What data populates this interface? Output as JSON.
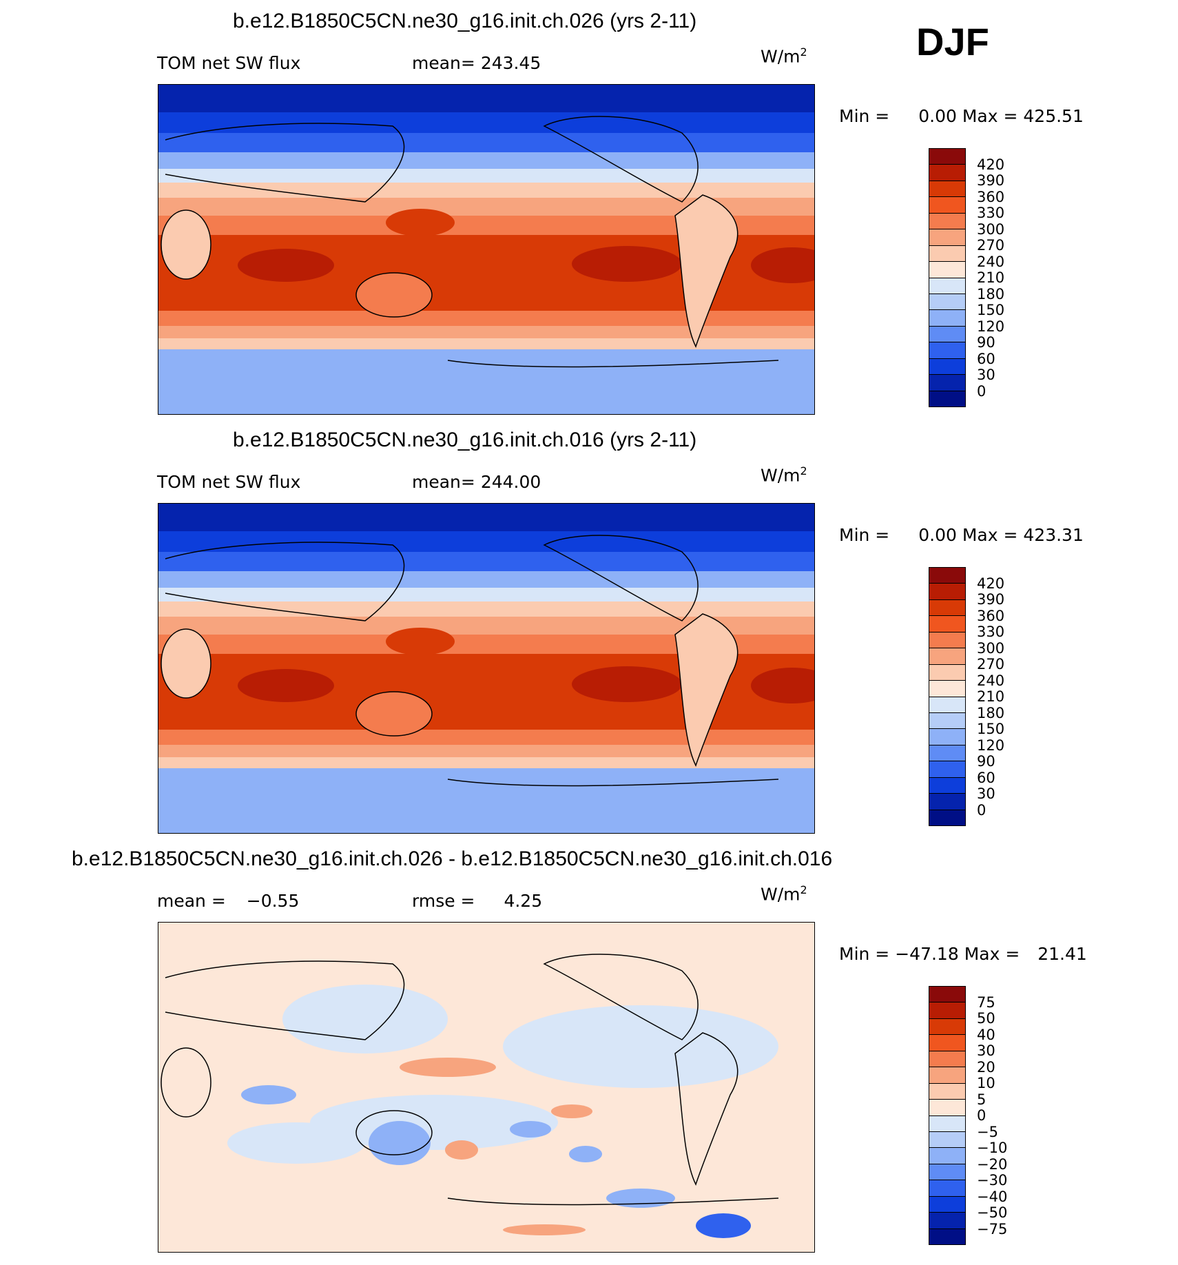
{
  "season": "DJF",
  "chart_data": [
    {
      "type": "heatmap",
      "title": "b.e12.B1850C5CN.ne30_g16.init.ch.026 (yrs 2-11)",
      "left_label": "TOM net SW flux",
      "stat_label": "mean=",
      "stat_value": "243.45",
      "units_base": "W/m",
      "units_exp": "2",
      "min_label": "Min =",
      "min_value": "0.00",
      "max_label": "Max =",
      "max_value": "425.51",
      "colorbar_levels": [
        "420",
        "390",
        "360",
        "330",
        "300",
        "270",
        "240",
        "210",
        "180",
        "150",
        "120",
        "90",
        "60",
        "30",
        "0"
      ],
      "colorbar_colors": [
        "#8a0a0a",
        "#b81d04",
        "#d83a06",
        "#f0561f",
        "#f47c4e",
        "#f7a47e",
        "#fbcbb0",
        "#fde7d8",
        "#d8e6f8",
        "#b5cdf7",
        "#8eb1f7",
        "#5f8cf5",
        "#2f61ee",
        "#0d3edb",
        "#0523ad",
        "#000f86"
      ]
    },
    {
      "type": "heatmap",
      "title": "b.e12.B1850C5CN.ne30_g16.init.ch.016 (yrs 2-11)",
      "left_label": "TOM net SW flux",
      "stat_label": "mean=",
      "stat_value": "244.00",
      "units_base": "W/m",
      "units_exp": "2",
      "min_label": "Min =",
      "min_value": "0.00",
      "max_label": "Max =",
      "max_value": "423.31",
      "colorbar_levels": [
        "420",
        "390",
        "360",
        "330",
        "300",
        "270",
        "240",
        "210",
        "180",
        "150",
        "120",
        "90",
        "60",
        "30",
        "0"
      ],
      "colorbar_colors": [
        "#8a0a0a",
        "#b81d04",
        "#d83a06",
        "#f0561f",
        "#f47c4e",
        "#f7a47e",
        "#fbcbb0",
        "#fde7d8",
        "#d8e6f8",
        "#b5cdf7",
        "#8eb1f7",
        "#5f8cf5",
        "#2f61ee",
        "#0d3edb",
        "#0523ad",
        "#000f86"
      ]
    },
    {
      "type": "heatmap",
      "title": "b.e12.B1850C5CN.ne30_g16.init.ch.026 - b.e12.B1850C5CN.ne30_g16.init.ch.016",
      "left_label": "mean =",
      "left_value": "−0.55",
      "stat_label": "rmse =",
      "stat_value": "4.25",
      "units_base": "W/m",
      "units_exp": "2",
      "min_label": "Min =",
      "min_value": "−47.18",
      "max_label": "Max =",
      "max_value": "21.41",
      "colorbar_levels": [
        "75",
        "50",
        "40",
        "30",
        "20",
        "10",
        "5",
        "0",
        "−5",
        "−10",
        "−20",
        "−30",
        "−40",
        "−50",
        "−75"
      ],
      "colorbar_colors": [
        "#8a0a0a",
        "#b81d04",
        "#d83a06",
        "#f0561f",
        "#f47c4e",
        "#f7a47e",
        "#fbcbb0",
        "#fde7d8",
        "#d8e6f8",
        "#b5cdf7",
        "#8eb1f7",
        "#5f8cf5",
        "#2f61ee",
        "#0d3edb",
        "#0523ad",
        "#000f86"
      ]
    }
  ]
}
